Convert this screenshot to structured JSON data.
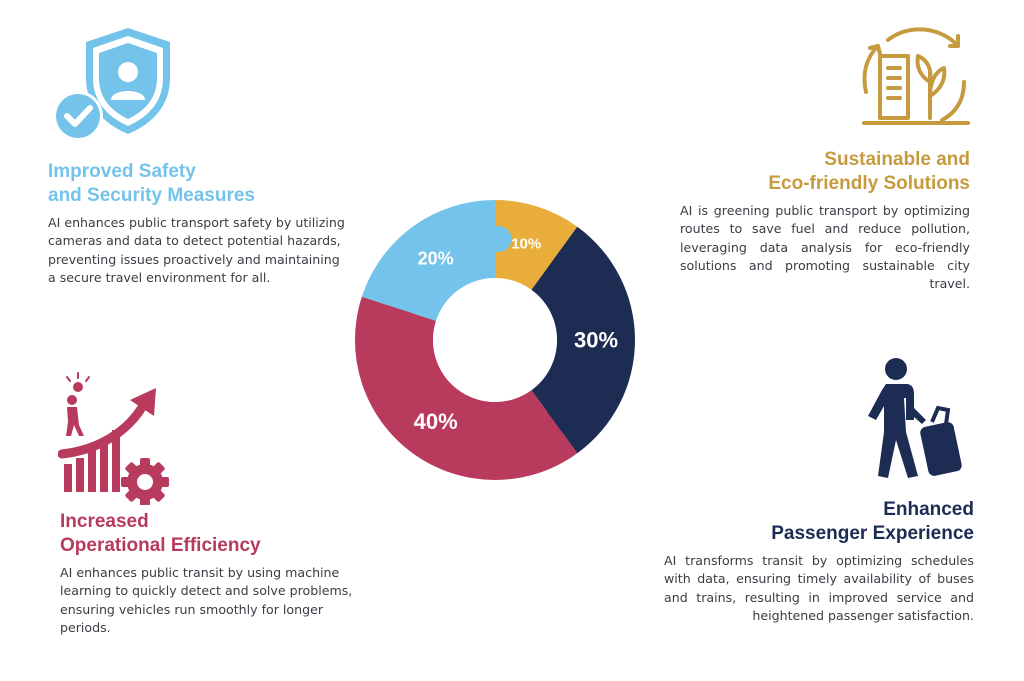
{
  "colors": {
    "safety": "#74c3ea",
    "eco": "#e8ad3a",
    "passenger": "#1c2c52",
    "efficiency": "#b83a5c",
    "eco_title": "#c69a3e",
    "text": "#3a3d44"
  },
  "icons": {
    "safety": "shield-user-check-icon",
    "eco": "recycle-building-plant-icon",
    "efficiency": "growth-arrow-gear-icon",
    "passenger": "traveler-suitcase-icon"
  },
  "sections": {
    "safety": {
      "title_line1": "Improved Safety",
      "title_line2": "and Security Measures",
      "body": "AI enhances public transport safety by utilizing cameras and data to detect potential hazards, preventing issues proactively and maintaining a secure travel environment for all."
    },
    "eco": {
      "title_line1": "Sustainable and",
      "title_line2": "Eco-friendly Solutions",
      "body": "AI is greening public transport by optimizing routes to save fuel and reduce pollution, leveraging data analysis for eco-friendly solutions and promoting sustainable city travel."
    },
    "efficiency": {
      "title_line1": "Increased",
      "title_line2": "Operational Efficiency",
      "body": "AI enhances public transit by using machine learning to quickly detect and solve problems, ensuring vehicles run smoothly for longer periods."
    },
    "passenger": {
      "title_line1": "Enhanced",
      "title_line2": "Passenger Experience",
      "body": "AI transforms transit by optimizing schedules with data, ensuring timely availability of buses and trains, resulting in improved service and heightened passenger satisfaction."
    }
  },
  "chart_data": {
    "type": "pie",
    "style": "donut",
    "categories": [
      "Sustainable and Eco-friendly Solutions",
      "Enhanced Passenger Experience",
      "Increased Operational Efficiency",
      "Improved Safety and Security Measures"
    ],
    "values": [
      10,
      30,
      40,
      20
    ],
    "labels": [
      "10%",
      "30%",
      "40%",
      "20%"
    ],
    "colors": [
      "#e8ad3a",
      "#1c2c52",
      "#b83a5c",
      "#74c3ea"
    ]
  }
}
